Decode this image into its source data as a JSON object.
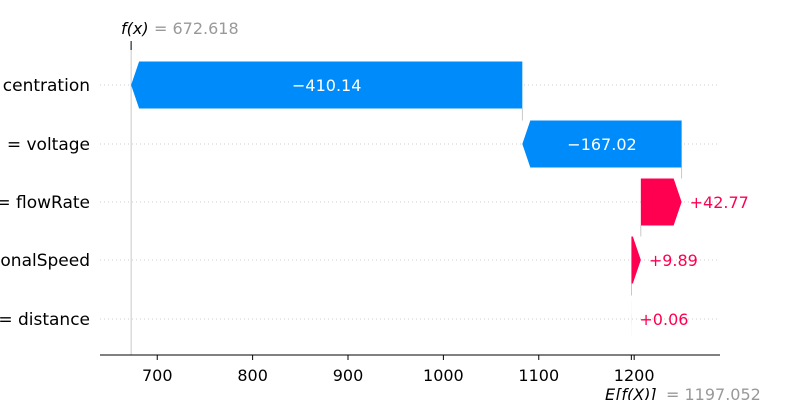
{
  "chart_data": {
    "type": "waterfall",
    "base_value": 1197.052,
    "output_value": 672.618,
    "fx_label": "f(x)",
    "fx_value_text": "= 672.618",
    "ex_label": "E[f(X)]",
    "ex_value_text": "= 1197.052",
    "xlim": [
      640,
      1290
    ],
    "xticks": [
      700,
      800,
      900,
      1000,
      1100,
      1200
    ],
    "xtick_labels": [
      "700",
      "800",
      "900",
      "1000",
      "1100",
      "1200"
    ],
    "features": [
      {
        "label": "centration",
        "value": -410.14,
        "value_text": "−410.14"
      },
      {
        "label": "= voltage",
        "value": -167.02,
        "value_text": "−167.02"
      },
      {
        "label": "= flowRate",
        "value": 42.77,
        "value_text": "+42.77"
      },
      {
        "label": "onalSpeed",
        "value": 9.89,
        "value_text": "+9.89"
      },
      {
        "label": "= distance",
        "value": 0.06,
        "value_text": "+0.06"
      }
    ],
    "colors": {
      "negative": "#008bfb",
      "positive": "#ff0051",
      "value_gray": "#999999"
    }
  }
}
